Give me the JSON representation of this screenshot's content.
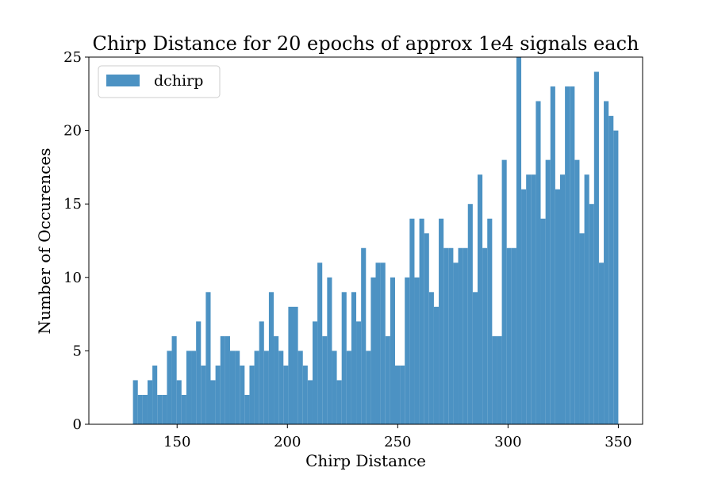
{
  "chart_data": {
    "type": "bar",
    "title": "Chirp Distance for 20 epochs of approx 1e4 signals each",
    "xlabel": "Chirp Distance",
    "ylabel": "Number of Occurences",
    "xlim": [
      110,
      361
    ],
    "ylim": [
      0,
      25.0
    ],
    "xticks": [
      150,
      200,
      250,
      300,
      350
    ],
    "yticks": [
      0,
      5,
      10,
      15,
      20,
      25
    ],
    "grid": false,
    "legend_position": "top-left",
    "bar_color": "#4C92C3",
    "series": [
      {
        "name": "dchirp",
        "bin_start": 130.0,
        "bin_width": 2.2,
        "values": [
          3,
          2,
          2,
          3,
          4,
          2,
          2,
          5,
          6,
          3,
          2,
          5,
          5,
          7,
          4,
          9,
          3,
          4,
          6,
          6,
          5,
          5,
          4,
          2,
          4,
          5,
          7,
          5,
          9,
          6,
          5,
          4,
          8,
          8,
          5,
          4,
          3,
          7,
          11,
          6,
          10,
          5,
          3,
          9,
          5,
          9,
          7,
          12,
          5,
          10,
          11,
          11,
          6,
          10,
          4,
          4,
          10,
          14,
          10,
          14,
          13,
          9,
          8,
          14,
          12,
          12,
          11,
          12,
          12,
          15,
          9,
          17,
          12,
          14,
          6,
          6,
          18,
          12,
          12,
          25,
          16,
          17,
          17,
          22,
          14,
          18,
          23,
          16,
          17,
          23,
          23,
          18,
          13,
          17,
          15,
          24,
          11,
          22,
          21,
          20
        ]
      }
    ]
  }
}
